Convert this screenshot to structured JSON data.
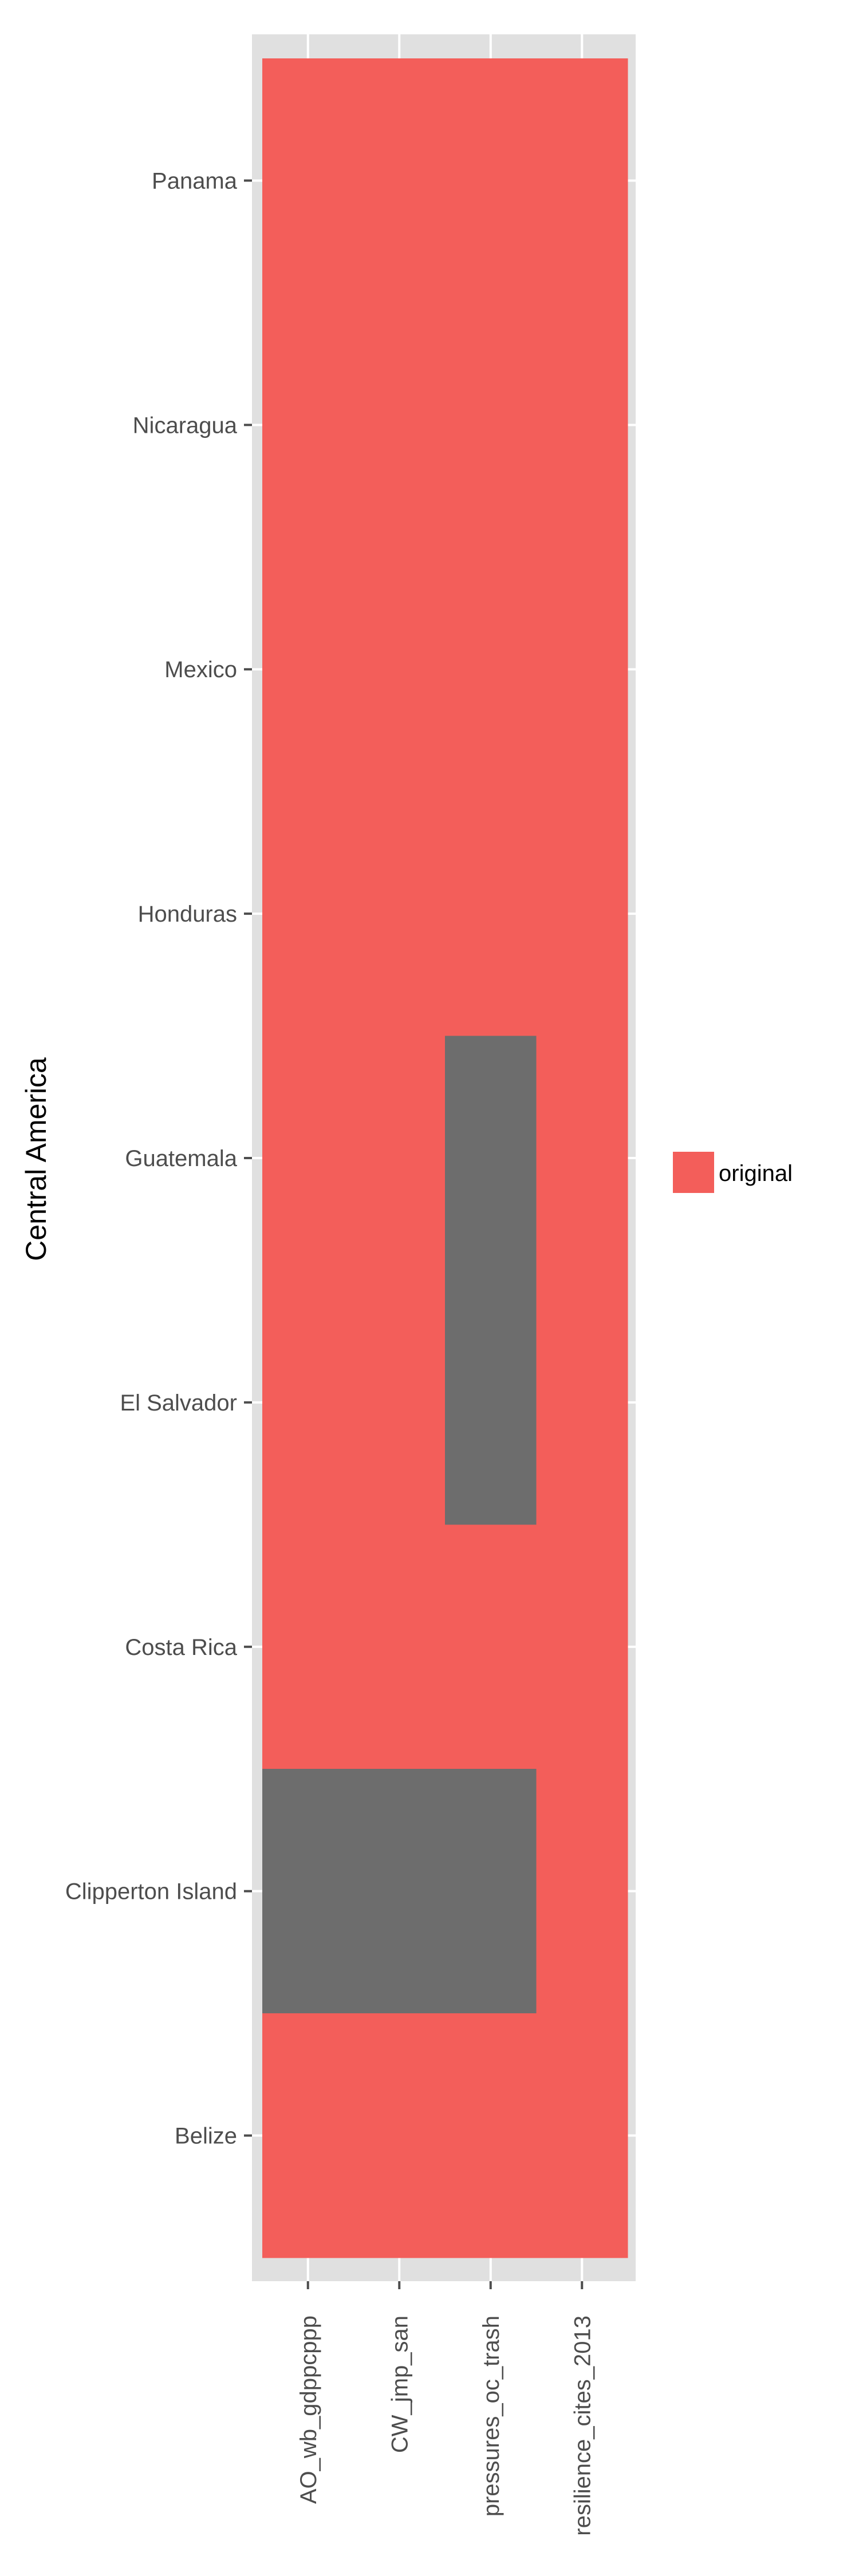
{
  "chart_data": {
    "type": "heatmap",
    "title": "",
    "xlabel": "",
    "ylabel": "Central America",
    "x_categories": [
      "AO_wb_gdppcppp",
      "CW_jmp_san",
      "pressures_oc_trash",
      "resilience_cites_2013"
    ],
    "y_categories": [
      "Panama",
      "Nicaragua",
      "Mexico",
      "Honduras",
      "Guatemala",
      "El Salvador",
      "Costa Rica",
      "Clipperton Island",
      "Belize"
    ],
    "cells": [
      [
        "original",
        "original",
        "original",
        "original"
      ],
      [
        "original",
        "original",
        "original",
        "original"
      ],
      [
        "original",
        "original",
        "original",
        "original"
      ],
      [
        "original",
        "original",
        "original",
        "original"
      ],
      [
        "original",
        "original",
        null,
        "original"
      ],
      [
        "original",
        "original",
        null,
        "original"
      ],
      [
        "original",
        "original",
        "original",
        "original"
      ],
      [
        null,
        null,
        null,
        "original"
      ],
      [
        "original",
        "original",
        "original",
        "original"
      ]
    ],
    "legend": {
      "position": "right",
      "entries": [
        {
          "label": "original",
          "color": "#f35e5a"
        }
      ]
    },
    "missing_color": "#6d6d6d",
    "panel_color": "#e0e0e0",
    "grid": true
  }
}
